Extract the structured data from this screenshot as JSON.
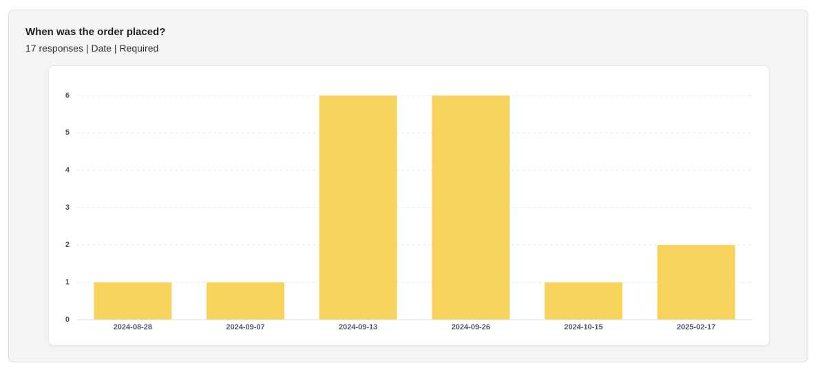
{
  "chart_data": {
    "type": "bar",
    "title": "When was the order placed?",
    "subtitle": "17 responses | Date | Required",
    "categories": [
      "2024-08-28",
      "2024-09-07",
      "2024-09-13",
      "2024-09-26",
      "2024-10-15",
      "2025-02-17"
    ],
    "values": [
      1,
      1,
      6,
      6,
      1,
      2
    ],
    "color": "#f7d35c",
    "ylim": [
      0,
      6
    ],
    "yticks": [
      0,
      1,
      2,
      3,
      4,
      5,
      6
    ],
    "grid": true
  }
}
